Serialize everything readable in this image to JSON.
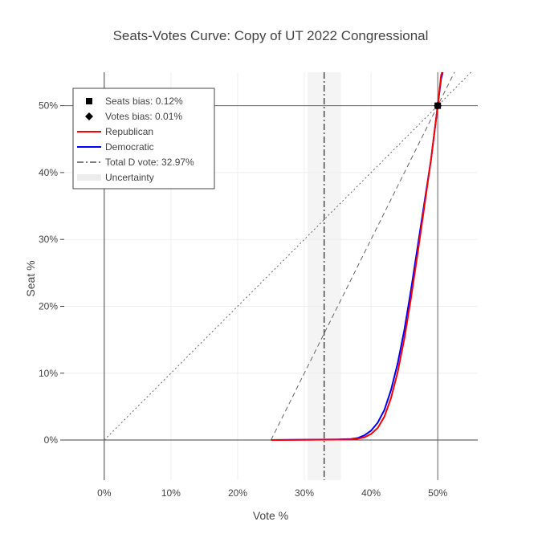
{
  "chart_data": {
    "type": "line",
    "title": "Seats-Votes Curve: Copy of UT 2022 Congressional",
    "xlabel": "Vote %",
    "ylabel": "Seat %",
    "xlim": [
      -0.06,
      0.56
    ],
    "ylim": [
      -0.06,
      0.55
    ],
    "x_ticks": [
      0,
      0.1,
      0.2,
      0.3,
      0.4,
      0.5
    ],
    "x_tick_labels": [
      "0%",
      "10%",
      "20%",
      "30%",
      "40%",
      "50%"
    ],
    "y_ticks": [
      0,
      0.1,
      0.2,
      0.3,
      0.4,
      0.5
    ],
    "y_tick_labels": [
      "0%",
      "10%",
      "20%",
      "30%",
      "40%",
      "50%"
    ],
    "grid": true,
    "legend_position": "top-left",
    "legend": [
      {
        "label": "Seats bias: 0.12%",
        "marker": "square"
      },
      {
        "label": "Votes bias: 0.01%",
        "marker": "diamond"
      },
      {
        "label": "Republican",
        "marker": "line",
        "color": "#ff0000"
      },
      {
        "label": "Democratic",
        "marker": "line",
        "color": "#0000ff"
      },
      {
        "label": "Total D vote: 32.97%",
        "marker": "dashdot"
      },
      {
        "label": "Uncertainty",
        "marker": "band"
      }
    ],
    "series": [
      {
        "name": "Democratic",
        "color": "#0000ff",
        "x": [
          0.25,
          0.3,
          0.35,
          0.37,
          0.38,
          0.39,
          0.4,
          0.41,
          0.42,
          0.43,
          0.44,
          0.45,
          0.46,
          0.47,
          0.48,
          0.49,
          0.5,
          0.505,
          0.51
        ],
        "y": [
          0.0,
          0.0005,
          0.001,
          0.0015,
          0.003,
          0.007,
          0.014,
          0.026,
          0.045,
          0.075,
          0.115,
          0.165,
          0.225,
          0.29,
          0.355,
          0.42,
          0.5,
          0.54,
          0.56
        ]
      },
      {
        "name": "Republican",
        "color": "#ff0000",
        "x": [
          0.25,
          0.3,
          0.35,
          0.37,
          0.38,
          0.39,
          0.4,
          0.41,
          0.42,
          0.43,
          0.44,
          0.45,
          0.46,
          0.47,
          0.48,
          0.49,
          0.5,
          0.505,
          0.51
        ],
        "y": [
          0.0,
          0.0003,
          0.0007,
          0.001,
          0.002,
          0.004,
          0.009,
          0.018,
          0.035,
          0.063,
          0.102,
          0.152,
          0.213,
          0.28,
          0.35,
          0.42,
          0.5,
          0.545,
          0.565
        ]
      }
    ],
    "reference_lines": [
      {
        "name": "proportionality",
        "style": "dotted",
        "x": [
          0,
          0.55
        ],
        "y": [
          0,
          0.55
        ]
      },
      {
        "name": "double proportionality",
        "style": "dashed",
        "x": [
          0.25,
          0.525
        ],
        "y": [
          0,
          0.55
        ]
      },
      {
        "name": "vertical 50%",
        "style": "solid",
        "x": [
          0.5,
          0.5
        ]
      },
      {
        "name": "horizontal 50%",
        "style": "solid",
        "y": [
          0.5,
          0.5
        ]
      }
    ],
    "total_d_vote": 0.3297,
    "uncertainty_band": [
      0.305,
      0.355
    ],
    "bias_points": [
      {
        "name": "Seats bias",
        "marker": "square",
        "x": 0.5,
        "y": 0.5
      },
      {
        "name": "Votes bias",
        "marker": "diamond",
        "x": 0.5,
        "y": 0.5
      }
    ]
  }
}
